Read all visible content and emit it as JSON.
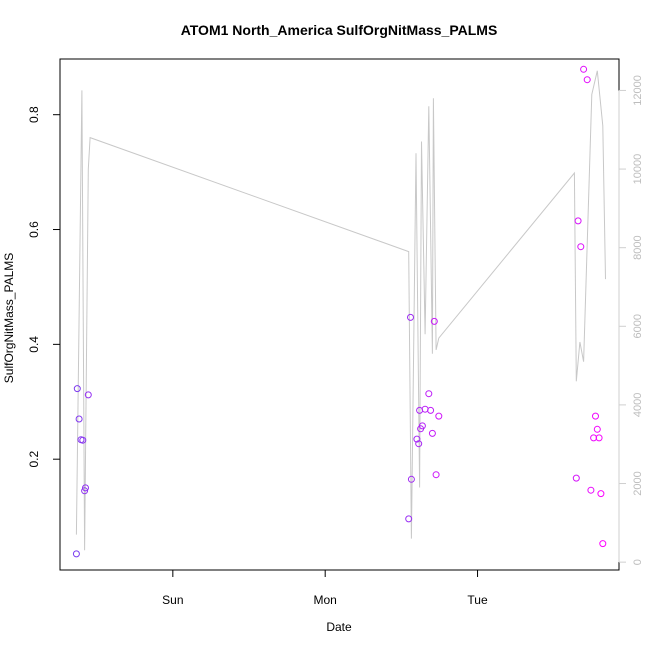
{
  "chart_data": {
    "type": "scatter",
    "title": "ATOM1 North_America SulfOrgNitMass_PALMS",
    "xlabel": "Date",
    "ylabel": "SulfOrgNitMass_PALMS",
    "x_ticks": [
      "Sun",
      "Mon",
      "Tue"
    ],
    "x_tick_values": [
      1,
      2,
      3
    ],
    "xlim": [
      0.2594,
      3.9285
    ],
    "ylim": [
      0.007,
      0.897
    ],
    "y_ticks": [
      0.2,
      0.4,
      0.6,
      0.8
    ],
    "y_right_ticks": [
      0,
      2000,
      4000,
      6000,
      8000,
      10000,
      12000
    ],
    "y_right_lim": [
      -200,
      12800
    ],
    "grid": false,
    "legend": "none",
    "colors": {
      "points_start": "#7a3cf0",
      "points_end": "#ff00ff",
      "line": "#c8c8c8"
    },
    "points": [
      {
        "x": 0.367,
        "y": 0.035
      },
      {
        "x": 0.373,
        "y": 0.323
      },
      {
        "x": 0.385,
        "y": 0.27
      },
      {
        "x": 0.397,
        "y": 0.234
      },
      {
        "x": 0.409,
        "y": 0.233
      },
      {
        "x": 0.421,
        "y": 0.145
      },
      {
        "x": 0.427,
        "y": 0.15
      },
      {
        "x": 0.445,
        "y": 0.312
      },
      {
        "x": 2.548,
        "y": 0.096
      },
      {
        "x": 2.56,
        "y": 0.447
      },
      {
        "x": 2.566,
        "y": 0.165
      },
      {
        "x": 2.602,
        "y": 0.235
      },
      {
        "x": 2.614,
        "y": 0.227
      },
      {
        "x": 2.62,
        "y": 0.285
      },
      {
        "x": 2.626,
        "y": 0.253
      },
      {
        "x": 2.638,
        "y": 0.258
      },
      {
        "x": 2.656,
        "y": 0.287
      },
      {
        "x": 2.68,
        "y": 0.314
      },
      {
        "x": 2.692,
        "y": 0.285
      },
      {
        "x": 2.704,
        "y": 0.245
      },
      {
        "x": 2.716,
        "y": 0.44
      },
      {
        "x": 2.728,
        "y": 0.173
      },
      {
        "x": 2.746,
        "y": 0.275
      },
      {
        "x": 3.648,
        "y": 0.167
      },
      {
        "x": 3.66,
        "y": 0.615
      },
      {
        "x": 3.678,
        "y": 0.57
      },
      {
        "x": 3.696,
        "y": 0.879
      },
      {
        "x": 3.72,
        "y": 0.861
      },
      {
        "x": 3.744,
        "y": 0.146
      },
      {
        "x": 3.762,
        "y": 0.237
      },
      {
        "x": 3.774,
        "y": 0.275
      },
      {
        "x": 3.786,
        "y": 0.252
      },
      {
        "x": 3.798,
        "y": 0.237
      },
      {
        "x": 3.81,
        "y": 0.14
      },
      {
        "x": 3.822,
        "y": 0.053
      }
    ],
    "line_series": {
      "axis": "right",
      "x": [
        0.367,
        0.403,
        0.421,
        0.445,
        0.457,
        2.548,
        2.566,
        2.596,
        2.62,
        2.632,
        2.656,
        2.68,
        2.704,
        2.71,
        2.728,
        2.746,
        3.636,
        3.648,
        3.672,
        3.696,
        3.75,
        3.786,
        3.822,
        3.84
      ],
      "y": [
        700,
        12000,
        300,
        10000,
        10800,
        7900,
        600,
        10400,
        1900,
        10700,
        5800,
        11600,
        5300,
        11800,
        5400,
        5700,
        9900,
        4600,
        5600,
        5100,
        11900,
        12500,
        11100,
        7200
      ]
    }
  }
}
